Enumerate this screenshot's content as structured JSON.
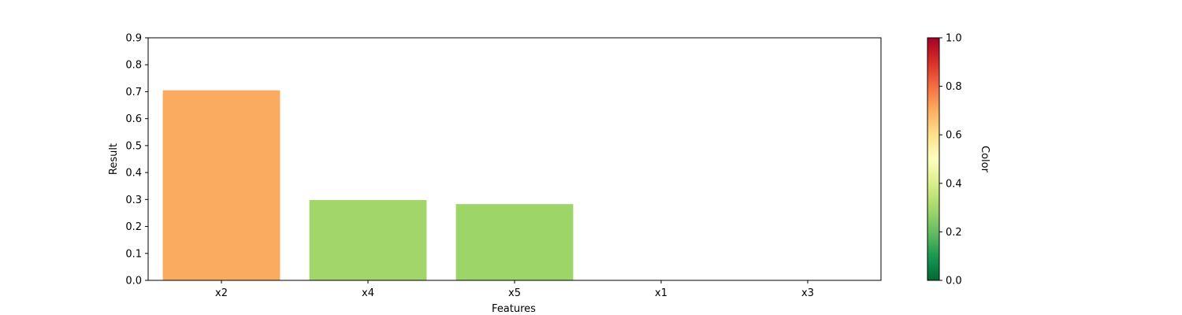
{
  "chart_data": {
    "type": "bar",
    "xlabel": "Features",
    "ylabel": "Result",
    "categories": [
      "x2",
      "x4",
      "x5",
      "x1",
      "x3"
    ],
    "values": [
      0.705,
      0.298,
      0.283,
      0.0,
      0.0
    ],
    "bar_colors": [
      "#fbab60",
      "#a3d66a",
      "#9dd569",
      "#2f9a4e",
      "#2f9a4e"
    ],
    "ylim": [
      0,
      0.9
    ],
    "yticks": [
      "0.0",
      "0.1",
      "0.2",
      "0.3",
      "0.4",
      "0.5",
      "0.6",
      "0.7",
      "0.8",
      "0.9"
    ],
    "grid": false,
    "colorbar": {
      "label": "Color",
      "colormap": "RdYlGn_r",
      "range": [
        0,
        1
      ],
      "ticks": [
        "0.0",
        "0.2",
        "0.4",
        "0.6",
        "0.8",
        "1.0"
      ],
      "stops": [
        "#006837",
        "#1a9850",
        "#66bd63",
        "#a6d96a",
        "#d9ef8b",
        "#ffffbf",
        "#fee08b",
        "#fdae61",
        "#f46d43",
        "#d73027",
        "#a50026"
      ]
    }
  }
}
